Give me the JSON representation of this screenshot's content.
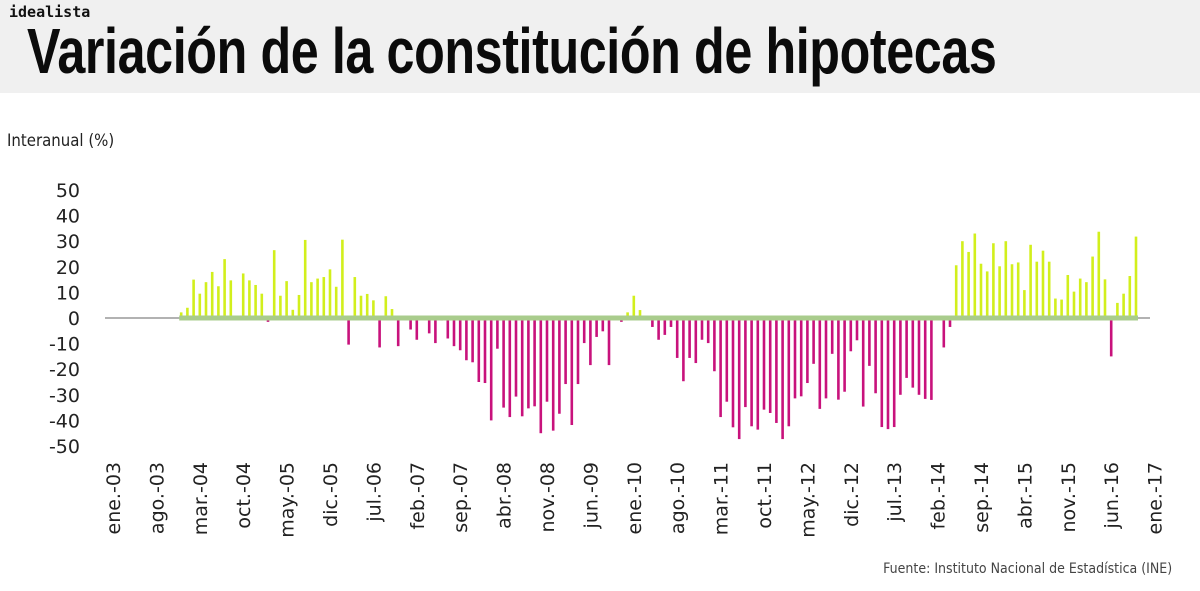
{
  "brand": "idealista",
  "title": "Variación de la constitución de hipotecas",
  "source": "Fuente: Instituto Nacional de Estadística (INE)",
  "chart_data": {
    "type": "bar",
    "title": "Variación de la constitución de hipotecas",
    "ylabel": "Interanual (%)",
    "xlabel": "",
    "ylim": [
      -50,
      50
    ],
    "yticks": [
      "50",
      "40",
      "30",
      "20",
      "10",
      "0",
      "-10",
      "-20",
      "-30",
      "-40",
      "-50"
    ],
    "xticks": [
      "ene.-03",
      "ago.-03",
      "mar.-04",
      "oct.-04",
      "may.-05",
      "dic.-05",
      "jul.-06",
      "feb.-07",
      "sep.-07",
      "abr.-08",
      "nov.-08",
      "jun.-09",
      "ene.-10",
      "ago.-10",
      "mar.-11",
      "oct.-11",
      "may.-12",
      "dic.-12",
      "jul.-13",
      "feb.-14",
      "sep.-14",
      "abr.-15",
      "nov.-15",
      "jun.-16",
      "ene.-17"
    ],
    "xrange": [
      "ene.-03",
      "ene.-17"
    ],
    "grid": false,
    "colors": {
      "positive": "#d2ef1c",
      "negative": "#c8127c",
      "zero_band": "#a9cc8c",
      "axis": "#999999"
    },
    "categories": [
      "dic.-03",
      "ene.-04",
      "feb.-04",
      "mar.-04",
      "abr.-04",
      "may.-04",
      "jun.-04",
      "jul.-04",
      "ago.-04",
      "sep.-04",
      "oct.-04",
      "nov.-04",
      "dic.-04",
      "ene.-05",
      "feb.-05",
      "mar.-05",
      "abr.-05",
      "may.-05",
      "jun.-05",
      "jul.-05",
      "ago.-05",
      "sep.-05",
      "oct.-05",
      "nov.-05",
      "dic.-05",
      "ene.-06",
      "feb.-06",
      "mar.-06",
      "abr.-06",
      "may.-06",
      "jun.-06",
      "jul.-06",
      "ago.-06",
      "sep.-06",
      "oct.-06",
      "nov.-06",
      "dic.-06",
      "ene.-07",
      "feb.-07",
      "mar.-07",
      "abr.-07",
      "may.-07",
      "jun.-07",
      "jul.-07",
      "ago.-07",
      "sep.-07",
      "oct.-07",
      "nov.-07",
      "dic.-07",
      "ene.-08",
      "feb.-08",
      "mar.-08",
      "abr.-08",
      "may.-08",
      "jun.-08",
      "jul.-08",
      "ago.-08",
      "sep.-08",
      "oct.-08",
      "nov.-08",
      "dic.-08",
      "ene.-09",
      "feb.-09",
      "mar.-09",
      "abr.-09",
      "may.-09",
      "jun.-09",
      "jul.-09",
      "ago.-09",
      "sep.-09",
      "oct.-09",
      "nov.-09",
      "dic.-09",
      "ene.-10",
      "feb.-10",
      "mar.-10",
      "abr.-10",
      "may.-10",
      "jun.-10",
      "jul.-10",
      "ago.-10",
      "sep.-10",
      "oct.-10",
      "nov.-10",
      "dic.-10",
      "ene.-11",
      "feb.-11",
      "mar.-11",
      "abr.-11",
      "may.-11",
      "jun.-11",
      "jul.-11",
      "ago.-11",
      "sep.-11",
      "oct.-11",
      "nov.-11",
      "dic.-11",
      "ene.-12",
      "feb.-12",
      "mar.-12",
      "abr.-12",
      "may.-12",
      "jun.-12",
      "jul.-12",
      "ago.-12",
      "sep.-12",
      "oct.-12",
      "nov.-12",
      "dic.-12",
      "ene.-13",
      "feb.-13",
      "mar.-13",
      "abr.-13",
      "may.-13",
      "jun.-13",
      "jul.-13",
      "ago.-13",
      "sep.-13",
      "oct.-13",
      "nov.-13",
      "dic.-13",
      "ene.-14",
      "feb.-14",
      "mar.-14",
      "abr.-14",
      "may.-14",
      "jun.-14",
      "jul.-14",
      "ago.-14",
      "sep.-14",
      "oct.-14",
      "nov.-14",
      "dic.-14",
      "ene.-15",
      "feb.-15",
      "mar.-15",
      "abr.-15",
      "may.-15",
      "jun.-15",
      "jul.-15",
      "ago.-15",
      "sep.-15",
      "oct.-15",
      "nov.-15",
      "dic.-15",
      "ene.-16",
      "feb.-16",
      "mar.-16",
      "abr.-16",
      "may.-16",
      "jun.-16",
      "jul.-16",
      "ago.-16",
      "sep.-16",
      "oct.-16"
    ],
    "values": [
      2.2,
      4,
      15,
      9.5,
      14,
      18,
      12.4,
      23,
      14.7,
      -0.5,
      17.4,
      14.7,
      12.9,
      9.5,
      -1.5,
      26.5,
      8.7,
      14.4,
      3.2,
      9,
      30.5,
      14,
      15.4,
      16,
      19,
      12.2,
      30.6,
      -10.4,
      16,
      8.7,
      9.4,
      6.9,
      -11.5,
      8.5,
      3.5,
      -11,
      0,
      -4.5,
      -8.5,
      0,
      -6,
      -9.8,
      -1,
      -8,
      -11,
      -12.6,
      -16.5,
      -17.3,
      -25,
      -25.4,
      -40,
      -12,
      -35,
      -38.7,
      -30.7,
      -38.4,
      -35.3,
      -34.5,
      -45,
      -32.7,
      -44,
      -37.4,
      -25.8,
      -41.8,
      -25.8,
      -9.8,
      -18.4,
      -7.4,
      -5.2,
      -18.4,
      0,
      -1.5,
      2.2,
      8.7,
      3.1,
      0,
      -3.5,
      -8.5,
      -6.6,
      -3.5,
      -15.6,
      -24.7,
      -15.6,
      -17.6,
      -8.5,
      -9.8,
      -20.8,
      -38.7,
      -32.7,
      -42.7,
      -47.3,
      -34.8,
      -42.3,
      -43.6,
      -35.8,
      -37.1,
      -41,
      -47.3,
      -42.3,
      -31.4,
      -30.6,
      -25.4,
      -17.9,
      -35.5,
      -31.4,
      -14,
      -31.9,
      -28.8,
      -13,
      -8.7,
      -34.6,
      -18.7,
      -29.4,
      -42.6,
      -43.4,
      -42.6,
      -30,
      -23.4,
      -27.2,
      -30,
      -31.6,
      -32,
      0.5,
      -11.5,
      -3.5,
      20.6,
      30,
      25.8,
      33,
      21.2,
      18.2,
      29.2,
      20.2,
      30,
      21,
      21.7,
      10.9,
      28.6,
      22,
      26.3,
      22,
      7.6,
      7.2,
      16.8,
      10.3,
      15.4,
      14,
      24,
      33.7,
      15.1,
      -15,
      5.9,
      9.5,
      16.4,
      31.8
    ]
  }
}
